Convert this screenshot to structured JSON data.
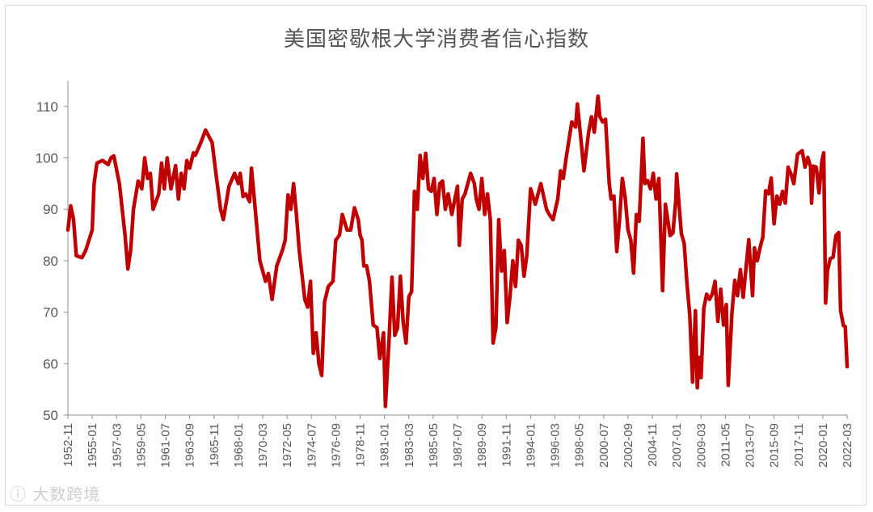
{
  "chart_data": {
    "type": "line",
    "title": "美国密歇根大学消费者信心指数",
    "xlabel": "",
    "ylabel": "",
    "ylim": [
      50,
      115
    ],
    "yticks": [
      50,
      60,
      70,
      80,
      90,
      100,
      110
    ],
    "legend": "none",
    "grid": false,
    "x_tick_labels": [
      "1952-11",
      "1955-01",
      "1957-03",
      "1959-05",
      "1961-07",
      "1963-09",
      "1965-11",
      "1968-01",
      "1970-03",
      "1972-05",
      "1974-07",
      "1976-09",
      "1978-11",
      "1981-01",
      "1983-03",
      "1985-05",
      "1987-07",
      "1989-09",
      "1991-11",
      "1994-01",
      "1996-03",
      "1998-05",
      "2000-07",
      "2002-09",
      "2004-11",
      "2007-01",
      "2009-03",
      "2011-05",
      "2013-07",
      "2015-09",
      "2017-11",
      "2020-01",
      "2022-03"
    ],
    "series": [
      {
        "color": "#c00000",
        "points": [
          [
            "1952-11",
            86
          ],
          [
            "1953-02",
            90.7
          ],
          [
            "1953-05",
            88
          ],
          [
            "1953-08",
            81
          ],
          [
            "1954-02",
            80.6
          ],
          [
            "1954-06",
            82
          ],
          [
            "1955-01",
            86
          ],
          [
            "1955-03",
            95
          ],
          [
            "1955-06",
            99
          ],
          [
            "1955-12",
            99.5
          ],
          [
            "1956-06",
            98.7
          ],
          [
            "1956-09",
            100
          ],
          [
            "1956-12",
            100.4
          ],
          [
            "1957-06",
            95
          ],
          [
            "1957-12",
            85
          ],
          [
            "1958-03",
            78.4
          ],
          [
            "1958-06",
            82
          ],
          [
            "1958-09",
            90
          ],
          [
            "1959-02",
            95.5
          ],
          [
            "1959-06",
            94
          ],
          [
            "1959-09",
            100
          ],
          [
            "1959-12",
            96
          ],
          [
            "1960-03",
            97
          ],
          [
            "1960-06",
            90
          ],
          [
            "1960-12",
            93
          ],
          [
            "1961-03",
            99
          ],
          [
            "1961-06",
            94
          ],
          [
            "1961-09",
            100
          ],
          [
            "1962-01",
            94
          ],
          [
            "1962-06",
            98.5
          ],
          [
            "1962-09",
            92
          ],
          [
            "1962-12",
            97
          ],
          [
            "1963-03",
            94
          ],
          [
            "1963-06",
            99.5
          ],
          [
            "1963-09",
            98
          ],
          [
            "1964-01",
            101
          ],
          [
            "1964-03",
            100.5
          ],
          [
            "1964-09",
            103
          ],
          [
            "1965-02",
            105.4
          ],
          [
            "1965-06",
            104
          ],
          [
            "1965-09",
            103
          ],
          [
            "1966-01",
            97
          ],
          [
            "1966-06",
            90
          ],
          [
            "1966-09",
            88
          ],
          [
            "1967-03",
            94.5
          ],
          [
            "1967-09",
            97
          ],
          [
            "1968-01",
            95
          ],
          [
            "1968-03",
            97
          ],
          [
            "1968-06",
            92.5
          ],
          [
            "1968-09",
            93
          ],
          [
            "1969-01",
            91.5
          ],
          [
            "1969-03",
            98
          ],
          [
            "1969-06",
            92
          ],
          [
            "1969-12",
            80
          ],
          [
            "1970-03",
            78
          ],
          [
            "1970-06",
            76
          ],
          [
            "1970-09",
            77.5
          ],
          [
            "1971-01",
            72.5
          ],
          [
            "1971-06",
            79
          ],
          [
            "1971-12",
            82
          ],
          [
            "1972-03",
            84
          ],
          [
            "1972-06",
            92.8
          ],
          [
            "1972-09",
            90
          ],
          [
            "1972-12",
            95
          ],
          [
            "1973-03",
            89
          ],
          [
            "1973-06",
            82
          ],
          [
            "1973-12",
            72.5
          ],
          [
            "1974-03",
            71
          ],
          [
            "1974-06",
            76
          ],
          [
            "1974-09",
            62
          ],
          [
            "1974-12",
            66
          ],
          [
            "1975-03",
            60
          ],
          [
            "1975-06",
            57.7
          ],
          [
            "1975-09",
            72
          ],
          [
            "1976-01",
            75
          ],
          [
            "1976-06",
            76
          ],
          [
            "1976-09",
            84
          ],
          [
            "1977-01",
            85
          ],
          [
            "1977-04",
            89
          ],
          [
            "1977-09",
            86
          ],
          [
            "1978-01",
            86
          ],
          [
            "1978-05",
            90.3
          ],
          [
            "1978-09",
            88
          ],
          [
            "1978-11",
            85
          ],
          [
            "1979-01",
            84
          ],
          [
            "1979-03",
            79
          ],
          [
            "1979-06",
            79
          ],
          [
            "1979-09",
            76
          ],
          [
            "1980-01",
            67.5
          ],
          [
            "1980-05",
            67
          ],
          [
            "1980-08",
            61
          ],
          [
            "1980-12",
            66
          ],
          [
            "1981-02",
            51.7
          ],
          [
            "1981-06",
            65
          ],
          [
            "1981-09",
            76.8
          ],
          [
            "1981-12",
            65.5
          ],
          [
            "1982-03",
            67
          ],
          [
            "1982-06",
            77
          ],
          [
            "1982-09",
            68
          ],
          [
            "1982-12",
            64
          ],
          [
            "1983-03",
            73
          ],
          [
            "1983-06",
            74
          ],
          [
            "1983-09",
            93.5
          ],
          [
            "1983-12",
            90
          ],
          [
            "1984-03",
            100.5
          ],
          [
            "1984-06",
            96
          ],
          [
            "1984-09",
            100.9
          ],
          [
            "1984-12",
            94
          ],
          [
            "1985-03",
            93.5
          ],
          [
            "1985-06",
            96
          ],
          [
            "1985-09",
            89
          ],
          [
            "1985-12",
            95
          ],
          [
            "1986-03",
            95.5
          ],
          [
            "1986-06",
            90
          ],
          [
            "1986-09",
            93
          ],
          [
            "1987-01",
            89
          ],
          [
            "1987-03",
            91
          ],
          [
            "1987-07",
            94.5
          ],
          [
            "1987-09",
            83
          ],
          [
            "1987-12",
            92
          ],
          [
            "1988-03",
            93
          ],
          [
            "1988-06",
            95
          ],
          [
            "1988-09",
            97
          ],
          [
            "1989-01",
            95
          ],
          [
            "1989-03",
            92
          ],
          [
            "1989-06",
            90
          ],
          [
            "1989-09",
            96
          ],
          [
            "1989-12",
            89
          ],
          [
            "1990-03",
            93
          ],
          [
            "1990-06",
            88
          ],
          [
            "1990-09",
            64
          ],
          [
            "1990-12",
            67
          ],
          [
            "1991-03",
            88
          ],
          [
            "1991-06",
            78
          ],
          [
            "1991-09",
            82
          ],
          [
            "1991-12",
            68
          ],
          [
            "1992-03",
            73
          ],
          [
            "1992-06",
            80
          ],
          [
            "1992-09",
            75
          ],
          [
            "1992-12",
            84
          ],
          [
            "1993-03",
            83
          ],
          [
            "1993-06",
            77
          ],
          [
            "1993-09",
            81
          ],
          [
            "1994-01",
            94
          ],
          [
            "1994-06",
            91
          ],
          [
            "1994-12",
            95
          ],
          [
            "1995-03",
            92.5
          ],
          [
            "1995-06",
            90
          ],
          [
            "1995-09",
            89
          ],
          [
            "1996-01",
            88
          ],
          [
            "1996-06",
            92
          ],
          [
            "1996-09",
            97.5
          ],
          [
            "1996-12",
            96
          ],
          [
            "1997-03",
            100
          ],
          [
            "1997-09",
            107
          ],
          [
            "1998-01",
            106
          ],
          [
            "1998-03",
            110.5
          ],
          [
            "1998-06",
            105
          ],
          [
            "1998-10",
            97.5
          ],
          [
            "1999-03",
            105
          ],
          [
            "1999-06",
            108
          ],
          [
            "1999-09",
            105
          ],
          [
            "2000-01",
            112
          ],
          [
            "2000-03",
            108
          ],
          [
            "2000-06",
            107
          ],
          [
            "2000-09",
            107.5
          ],
          [
            "2001-01",
            95
          ],
          [
            "2001-03",
            92
          ],
          [
            "2001-06",
            92.6
          ],
          [
            "2001-09",
            81.8
          ],
          [
            "2001-12",
            88
          ],
          [
            "2002-03",
            96
          ],
          [
            "2002-06",
            92.3
          ],
          [
            "2002-09",
            86
          ],
          [
            "2002-12",
            84
          ],
          [
            "2003-03",
            77.6
          ],
          [
            "2003-06",
            89
          ],
          [
            "2003-09",
            87.7
          ],
          [
            "2004-01",
            103.8
          ],
          [
            "2004-03",
            95
          ],
          [
            "2004-06",
            95.6
          ],
          [
            "2004-09",
            94
          ],
          [
            "2004-12",
            97
          ],
          [
            "2005-03",
            92
          ],
          [
            "2005-06",
            96
          ],
          [
            "2005-10",
            74.2
          ],
          [
            "2006-01",
            91
          ],
          [
            "2006-06",
            84.9
          ],
          [
            "2006-09",
            85.4
          ],
          [
            "2006-12",
            91.7
          ],
          [
            "2007-01",
            96.9
          ],
          [
            "2007-06",
            85.3
          ],
          [
            "2007-09",
            83.4
          ],
          [
            "2007-12",
            75.5
          ],
          [
            "2008-03",
            69.5
          ],
          [
            "2008-06",
            56.4
          ],
          [
            "2008-09",
            70.3
          ],
          [
            "2008-11",
            55.3
          ],
          [
            "2009-01",
            61.2
          ],
          [
            "2009-03",
            57.3
          ],
          [
            "2009-06",
            70.8
          ],
          [
            "2009-09",
            73.5
          ],
          [
            "2009-12",
            72.5
          ],
          [
            "2010-03",
            73.6
          ],
          [
            "2010-06",
            76
          ],
          [
            "2010-09",
            68.2
          ],
          [
            "2010-12",
            74.5
          ],
          [
            "2011-03",
            67.5
          ],
          [
            "2011-06",
            71.5
          ],
          [
            "2011-08",
            55.8
          ],
          [
            "2011-12",
            69.9
          ],
          [
            "2012-03",
            76.2
          ],
          [
            "2012-06",
            73.2
          ],
          [
            "2012-09",
            78.3
          ],
          [
            "2012-12",
            72.9
          ],
          [
            "2013-03",
            78.6
          ],
          [
            "2013-06",
            84.1
          ],
          [
            "2013-10",
            73.2
          ],
          [
            "2013-12",
            82.5
          ],
          [
            "2014-03",
            80
          ],
          [
            "2014-06",
            82.5
          ],
          [
            "2014-09",
            84.6
          ],
          [
            "2014-12",
            93.6
          ],
          [
            "2015-03",
            93
          ],
          [
            "2015-06",
            96.1
          ],
          [
            "2015-09",
            87.2
          ],
          [
            "2015-12",
            92.6
          ],
          [
            "2016-03",
            91
          ],
          [
            "2016-06",
            93.5
          ],
          [
            "2016-09",
            91.2
          ],
          [
            "2016-12",
            98.2
          ],
          [
            "2017-03",
            96.9
          ],
          [
            "2017-06",
            95
          ],
          [
            "2017-10",
            100.7
          ],
          [
            "2018-03",
            101.4
          ],
          [
            "2018-06",
            98.2
          ],
          [
            "2018-09",
            100.1
          ],
          [
            "2018-12",
            98.3
          ],
          [
            "2019-01",
            91.2
          ],
          [
            "2019-03",
            98.4
          ],
          [
            "2019-06",
            98.2
          ],
          [
            "2019-09",
            93.2
          ],
          [
            "2019-12",
            99.3
          ],
          [
            "2020-02",
            101
          ],
          [
            "2020-04",
            71.8
          ],
          [
            "2020-06",
            78.1
          ],
          [
            "2020-09",
            80.4
          ],
          [
            "2020-12",
            80.7
          ],
          [
            "2021-03",
            84.9
          ],
          [
            "2021-06",
            85.5
          ],
          [
            "2021-08",
            70.3
          ],
          [
            "2021-11",
            67.4
          ],
          [
            "2022-01",
            67.2
          ],
          [
            "2022-03",
            59.4
          ]
        ]
      }
    ]
  }
}
